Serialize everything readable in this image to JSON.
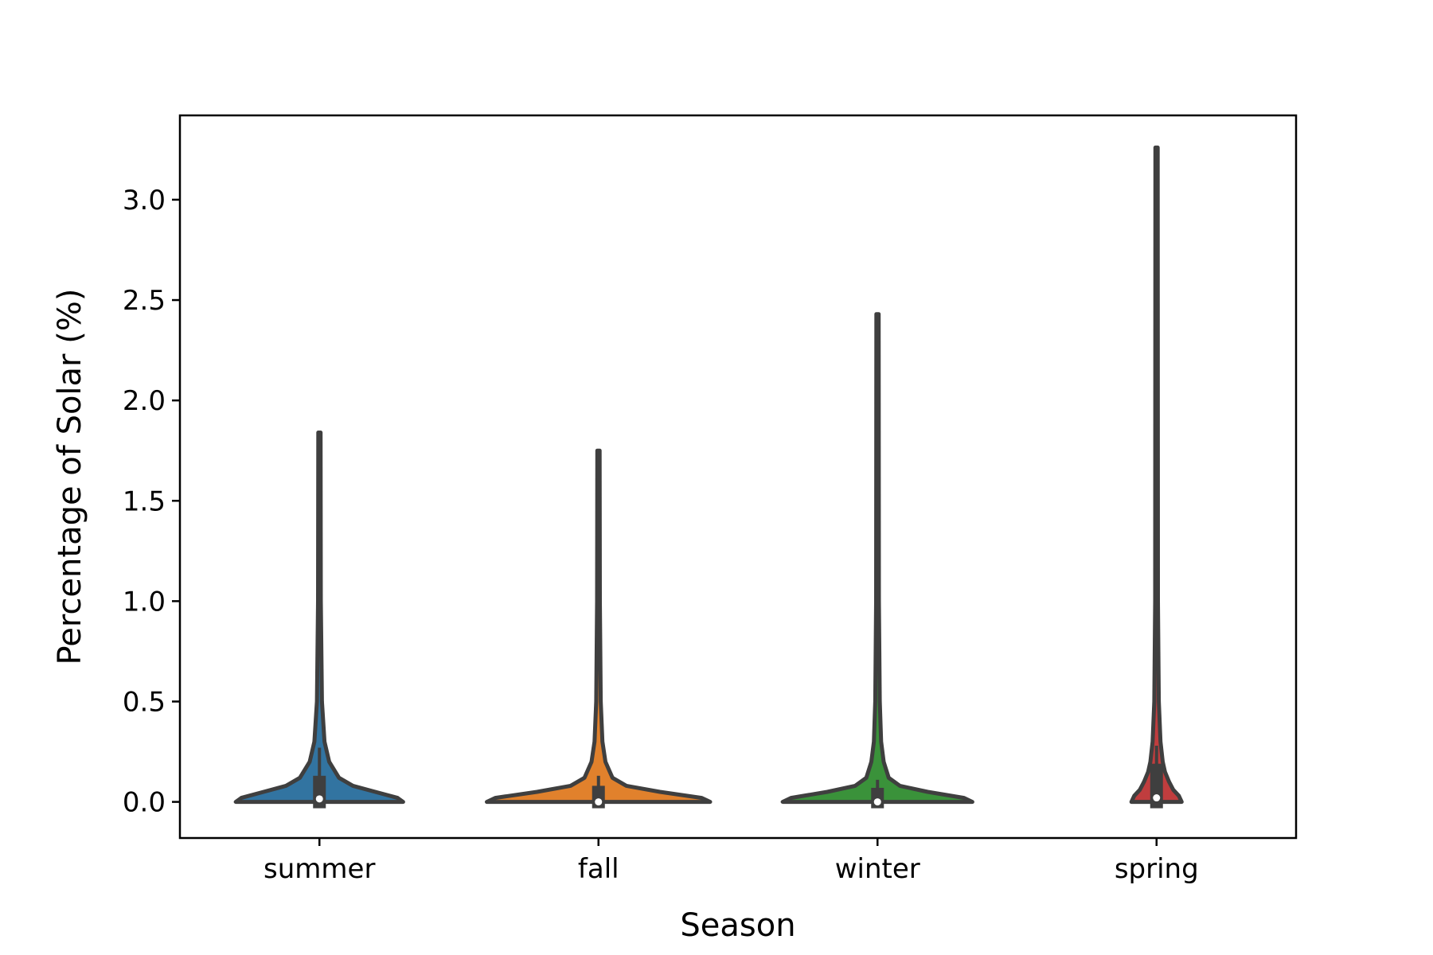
{
  "chart_data": {
    "type": "violin",
    "title": "",
    "xlabel": "Season",
    "ylabel": "Percentage of Solar (%)",
    "ylim": [
      -0.18,
      3.42
    ],
    "yticks": [
      "0.0",
      "0.5",
      "1.0",
      "1.5",
      "2.0",
      "2.5",
      "3.0"
    ],
    "grid": false,
    "categories": [
      "summer",
      "fall",
      "winter",
      "spring"
    ],
    "series": [
      {
        "category": "summer",
        "color": "#3274a1",
        "min": 0.0,
        "max": 1.84,
        "q1": 0.0,
        "median": 0.015,
        "q3": 0.13,
        "whisker_high": 0.27,
        "density_halfwidths": [
          [
            0.0,
            0.3
          ],
          [
            0.02,
            0.28
          ],
          [
            0.05,
            0.2
          ],
          [
            0.08,
            0.12
          ],
          [
            0.12,
            0.07
          ],
          [
            0.2,
            0.035
          ],
          [
            0.3,
            0.018
          ],
          [
            0.5,
            0.009
          ],
          [
            1.0,
            0.005
          ],
          [
            1.84,
            0.004
          ]
        ]
      },
      {
        "category": "fall",
        "color": "#e1812c",
        "min": 0.0,
        "max": 1.75,
        "q1": 0.0,
        "median": 0.0,
        "q3": 0.08,
        "whisker_high": 0.13,
        "density_halfwidths": [
          [
            0.0,
            0.4
          ],
          [
            0.02,
            0.37
          ],
          [
            0.05,
            0.22
          ],
          [
            0.08,
            0.1
          ],
          [
            0.12,
            0.05
          ],
          [
            0.2,
            0.025
          ],
          [
            0.3,
            0.014
          ],
          [
            0.5,
            0.008
          ],
          [
            1.0,
            0.005
          ],
          [
            1.75,
            0.004
          ]
        ]
      },
      {
        "category": "winter",
        "color": "#3a923a",
        "min": 0.0,
        "max": 2.43,
        "q1": 0.0,
        "median": 0.0,
        "q3": 0.07,
        "whisker_high": 0.11,
        "density_halfwidths": [
          [
            0.0,
            0.34
          ],
          [
            0.02,
            0.31
          ],
          [
            0.05,
            0.18
          ],
          [
            0.08,
            0.08
          ],
          [
            0.12,
            0.04
          ],
          [
            0.2,
            0.022
          ],
          [
            0.3,
            0.013
          ],
          [
            0.5,
            0.008
          ],
          [
            1.0,
            0.005
          ],
          [
            2.43,
            0.004
          ]
        ]
      },
      {
        "category": "spring",
        "color": "#c03d3e",
        "min": 0.0,
        "max": 3.26,
        "q1": 0.0,
        "median": 0.02,
        "q3": 0.19,
        "whisker_high": 0.28,
        "density_halfwidths": [
          [
            0.0,
            0.09
          ],
          [
            0.03,
            0.08
          ],
          [
            0.06,
            0.06
          ],
          [
            0.1,
            0.045
          ],
          [
            0.15,
            0.03
          ],
          [
            0.2,
            0.022
          ],
          [
            0.3,
            0.014
          ],
          [
            0.5,
            0.008
          ],
          [
            1.0,
            0.005
          ],
          [
            3.26,
            0.004
          ]
        ]
      }
    ]
  }
}
